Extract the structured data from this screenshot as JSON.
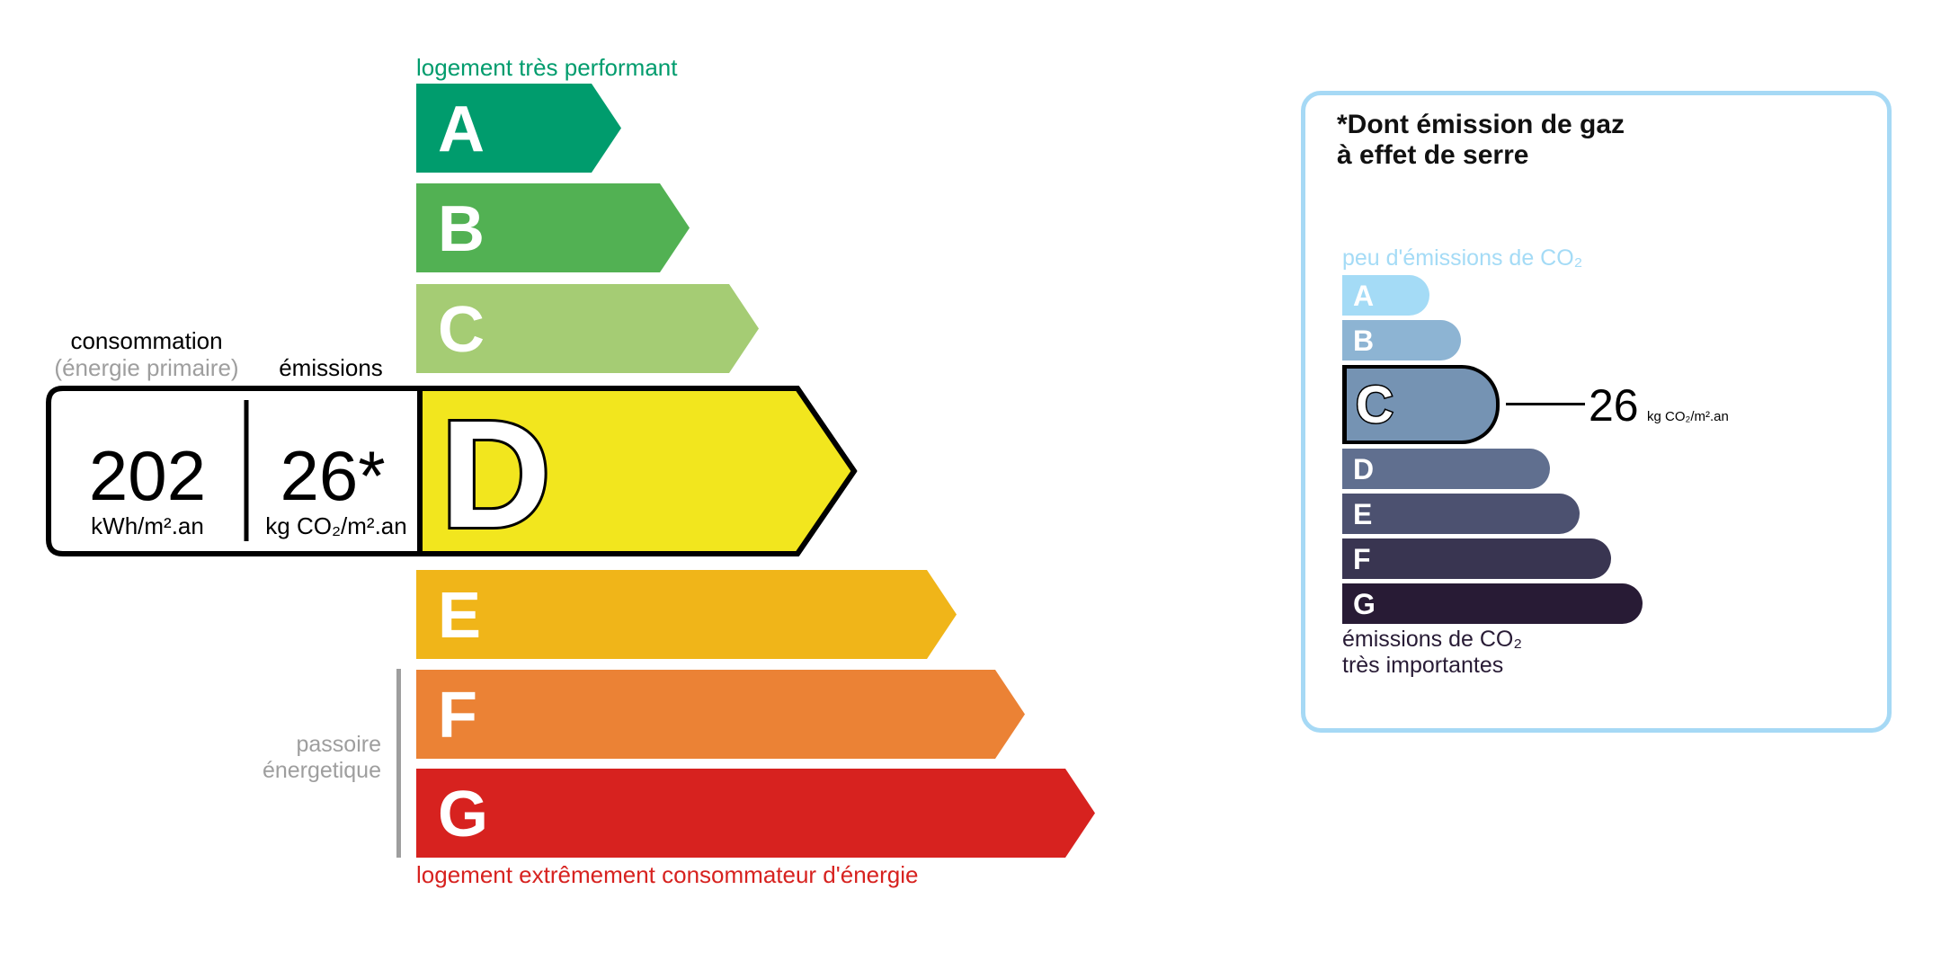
{
  "dpe": {
    "top_label": "logement très performant",
    "bottom_label": "logement extrêmement consommateur d'énergie",
    "passoire_line1": "passoire",
    "passoire_line2": "énergetique",
    "classes": [
      {
        "letter": "A",
        "color": "#009c6d"
      },
      {
        "letter": "B",
        "color": "#52b153"
      },
      {
        "letter": "C",
        "color": "#a5cc74"
      },
      {
        "letter": "D",
        "color": "#f2e61e"
      },
      {
        "letter": "E",
        "color": "#f0b519"
      },
      {
        "letter": "F",
        "color": "#eb8235"
      },
      {
        "letter": "G",
        "color": "#d7221f"
      }
    ],
    "current_class": "D",
    "consumption_label": "consommation",
    "consumption_sublabel": "(énergie primaire)",
    "emissions_label": "émissions",
    "consumption_value": "202",
    "consumption_unit": "kWh/m².an",
    "emissions_value": "26*",
    "emissions_unit": "kg CO₂/m².an"
  },
  "ges": {
    "title_line1": "*Dont émission de gaz",
    "title_line2": "à effet de serre",
    "top_label": "peu d'émissions de CO₂",
    "bottom_line1": "émissions de CO₂",
    "bottom_line2": "très importantes",
    "classes": [
      {
        "letter": "A",
        "color": "#a4dbf6"
      },
      {
        "letter": "B",
        "color": "#8db4d3"
      },
      {
        "letter": "C",
        "color": "#7593b3"
      },
      {
        "letter": "D",
        "color": "#606f8f"
      },
      {
        "letter": "E",
        "color": "#4c5170"
      },
      {
        "letter": "F",
        "color": "#393551"
      },
      {
        "letter": "G",
        "color": "#281b35"
      }
    ],
    "current_class": "C",
    "value": "26",
    "unit": "kg CO₂/m².an",
    "border_color": "#a6d9f5"
  }
}
